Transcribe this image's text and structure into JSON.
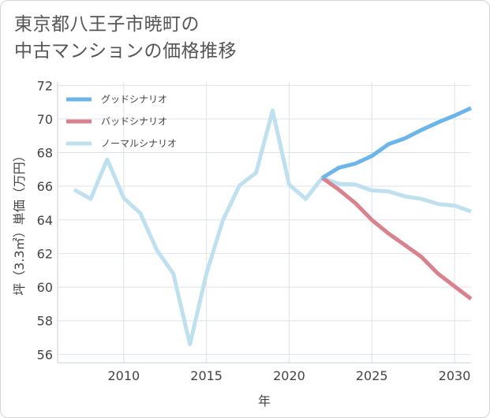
{
  "title_lines": [
    "東京都八王子市暁町の",
    "中古マンションの価格推移"
  ],
  "chart_data": {
    "type": "line",
    "xlabel": "年",
    "ylabel": "坪（3.3㎡）単価（万円）",
    "xlim": [
      2006,
      2031
    ],
    "ylim": [
      55.5,
      72.2
    ],
    "x_ticks": [
      2010,
      2015,
      2020,
      2025,
      2030
    ],
    "y_ticks": [
      56,
      58,
      60,
      62,
      64,
      66,
      68,
      70,
      72
    ],
    "grid": true,
    "legend_position": "top-left",
    "series": [
      {
        "name": "グッドシナリオ",
        "color": "#6bb5ea",
        "x": [
          2022,
          2023,
          2024,
          2025,
          2026,
          2027,
          2028,
          2029,
          2030,
          2031
        ],
        "y": [
          66.5,
          67.1,
          67.35,
          67.8,
          68.5,
          68.85,
          69.35,
          69.8,
          70.2,
          70.65
        ]
      },
      {
        "name": "バッドシナリオ",
        "color": "#d9828e",
        "x": [
          2022,
          2023,
          2024,
          2025,
          2026,
          2027,
          2028,
          2029,
          2030,
          2031
        ],
        "y": [
          66.5,
          65.8,
          65.0,
          64.0,
          63.2,
          62.5,
          61.8,
          60.8,
          60.05,
          59.3
        ]
      },
      {
        "name": "ノーマルシナリオ",
        "color": "#bfe0ee",
        "x": [
          2007,
          2008,
          2009,
          2010,
          2011,
          2012,
          2013,
          2014,
          2015,
          2016,
          2017,
          2018,
          2019,
          2020,
          2021,
          2022,
          2023,
          2024,
          2025,
          2026,
          2027,
          2028,
          2029,
          2030,
          2031
        ],
        "y": [
          65.8,
          65.25,
          67.6,
          65.3,
          64.4,
          62.2,
          60.8,
          56.6,
          60.8,
          64.0,
          66.05,
          66.8,
          70.5,
          66.1,
          65.25,
          66.5,
          66.15,
          66.1,
          65.75,
          65.7,
          65.4,
          65.25,
          64.95,
          64.85,
          64.5
        ]
      }
    ]
  }
}
